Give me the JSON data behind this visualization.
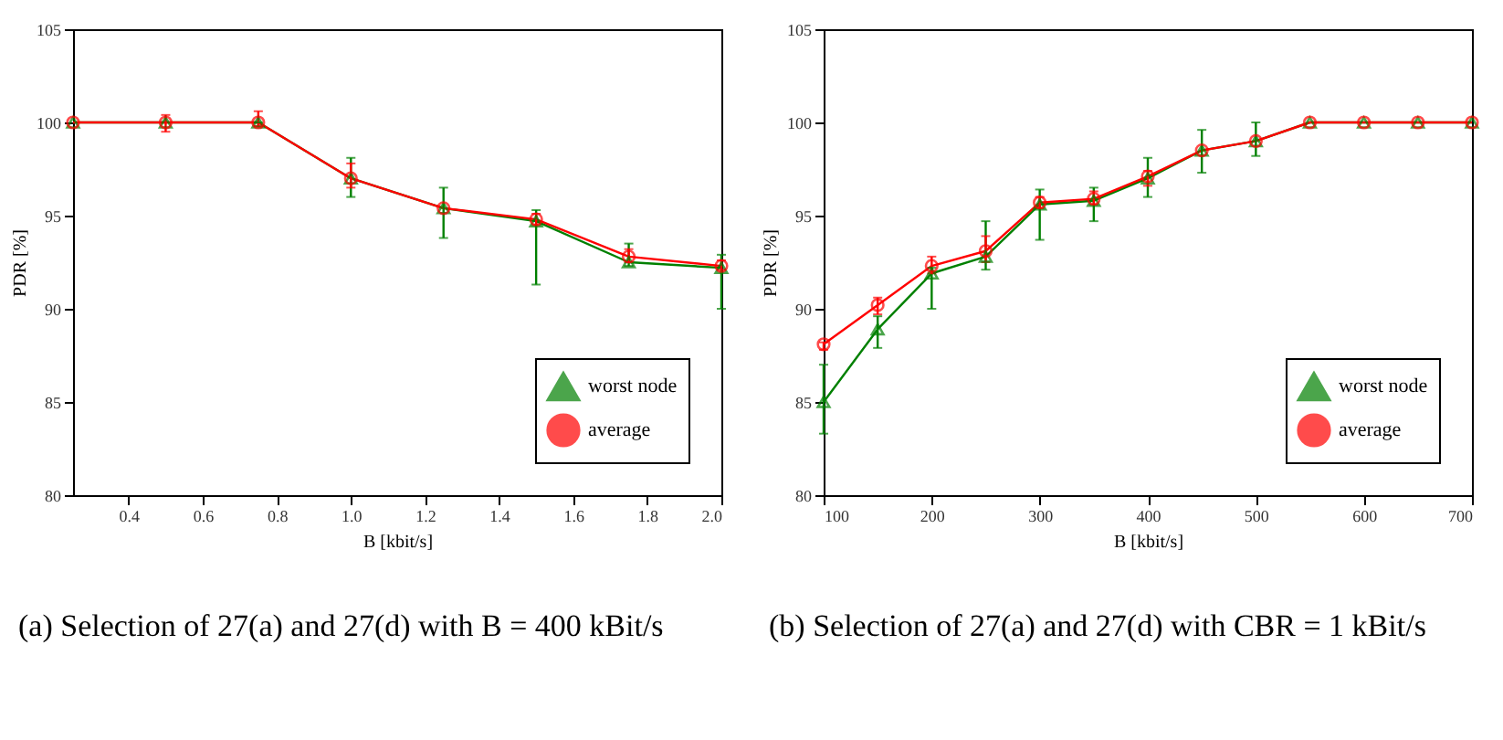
{
  "chart_data": [
    {
      "type": "line",
      "title": "(a) Selection of 27(a) and 27(d) with B = 400 kBit/s",
      "xlabel": "B [kbit/s]",
      "ylabel": "PDR [%]",
      "x": [
        0.25,
        0.5,
        0.75,
        1.0,
        1.25,
        1.5,
        1.75,
        2.0
      ],
      "xlim": [
        0.25,
        2.0
      ],
      "xticks": [
        0.4,
        0.6,
        0.8,
        {
          "value": 1,
          "label": "1.0"
        },
        1.2,
        1.4,
        1.6,
        1.8,
        {
          "value": 2,
          "label": "2.0"
        }
      ],
      "ylim": [
        80,
        105
      ],
      "yticks": [
        80,
        85,
        90,
        95,
        100,
        105
      ],
      "series": [
        {
          "name": "worst node",
          "color": "#008000",
          "marker": "triangle",
          "values": [
            100,
            100,
            100,
            97.0,
            95.4,
            94.7,
            92.5,
            92.2
          ],
          "errors": [
            null,
            null,
            [
              99.8,
              100
            ],
            [
              96.0,
              98.1
            ],
            [
              93.8,
              96.5
            ],
            [
              91.3,
              95.3
            ],
            [
              92.3,
              93.5
            ],
            [
              90.0,
              92.9
            ]
          ]
        },
        {
          "name": "average",
          "color": "#ff0000",
          "marker": "circle",
          "values": [
            100,
            100,
            100,
            97.0,
            95.4,
            94.8,
            92.8,
            92.3
          ],
          "errors": [
            null,
            [
              99.5,
              100.4
            ],
            [
              99.8,
              100.6
            ],
            [
              96.5,
              97.8
            ],
            null,
            [
              94.5,
              95.1
            ],
            [
              92.5,
              93.2
            ],
            [
              92.1,
              92.6
            ]
          ]
        }
      ],
      "legend": "bottom right",
      "grid": false,
      "line_style": "solid"
    },
    {
      "type": "line",
      "title": "(b) Selection of 27(a) and 27(d) with CBR = 1 kBit/s",
      "xlabel": "B [kbit/s]",
      "ylabel": "PDR [%]",
      "x": [
        100,
        150,
        200,
        250,
        300,
        350,
        400,
        450,
        500,
        550,
        600,
        650,
        700
      ],
      "xlim": [
        100,
        700
      ],
      "xticks": [
        100,
        200,
        300,
        400,
        500,
        600,
        700
      ],
      "ylim": [
        80,
        105
      ],
      "yticks": [
        80,
        85,
        90,
        95,
        100,
        105
      ],
      "series": [
        {
          "name": "worst node",
          "color": "#008000",
          "marker": "triangle",
          "values": [
            85.0,
            88.9,
            91.9,
            92.8,
            95.6,
            95.8,
            97.0,
            98.5,
            99.0,
            100,
            100,
            100,
            100
          ],
          "errors": [
            [
              83.3,
              87.0
            ],
            [
              87.9,
              89.6
            ],
            [
              90.0,
              92.2
            ],
            [
              92.1,
              94.7
            ],
            [
              93.7,
              96.4
            ],
            [
              94.7,
              96.5
            ],
            [
              96.0,
              98.1
            ],
            [
              97.3,
              99.6
            ],
            [
              98.2,
              100
            ],
            null,
            null,
            null,
            null
          ]
        },
        {
          "name": "average",
          "color": "#ff0000",
          "marker": "circle",
          "values": [
            88.1,
            90.2,
            92.3,
            93.1,
            95.7,
            95.9,
            97.1,
            98.5,
            99.0,
            100,
            100,
            100,
            100
          ],
          "errors": [
            [
              87.8,
              88.2
            ],
            [
              89.7,
              90.6
            ],
            [
              91.9,
              92.8
            ],
            [
              92.5,
              93.9
            ],
            [
              95.4,
              96.0
            ],
            [
              95.6,
              96.3
            ],
            [
              96.6,
              97.4
            ],
            null,
            null,
            null,
            null,
            null,
            null
          ]
        }
      ],
      "legend": "bottom right",
      "grid": false,
      "line_style": "solid"
    }
  ]
}
